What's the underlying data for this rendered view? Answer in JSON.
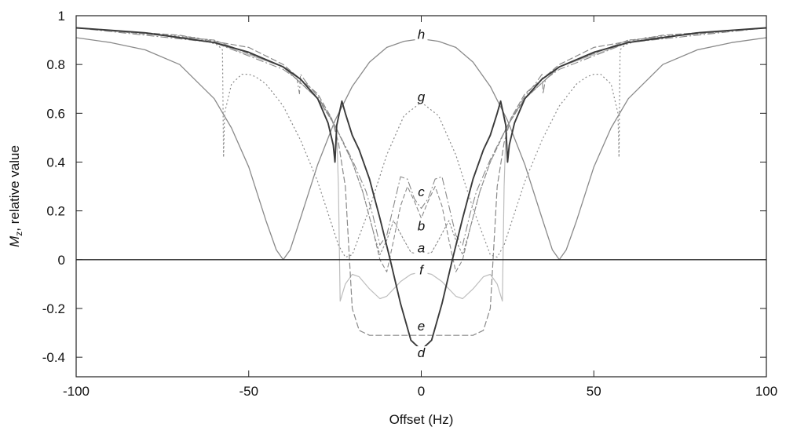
{
  "chart_data": {
    "type": "line",
    "title": "",
    "xlabel": "Offset (Hz)",
    "ylabel": "Mz, relative value",
    "ylabel_parts": {
      "main": "M",
      "sub": "z",
      "rest": ", relative value"
    },
    "xlim": [
      -100,
      100
    ],
    "ylim": [
      -0.48,
      1.0
    ],
    "xticks": [
      -100,
      -50,
      0,
      50,
      100
    ],
    "yticks": [
      -0.4,
      -0.2,
      0,
      0.2,
      0.4,
      0.6,
      0.8,
      1
    ],
    "xtick_labels": [
      "-100",
      "-50",
      "0",
      "50",
      "100"
    ],
    "ytick_labels": [
      "-0.4",
      "-0.2",
      "0",
      "0.2",
      "0.4",
      "0.6",
      "0.8",
      "1"
    ],
    "grid": false,
    "legend": "none",
    "reference_line": {
      "y": 0
    },
    "series": [
      {
        "name": "h",
        "style": {
          "color": "#8a8a8a",
          "width": 1.3,
          "dash": ""
        },
        "label_at": [
          0,
          0.905
        ],
        "x": [
          -100,
          -90,
          -80,
          -70,
          -60,
          -55,
          -50,
          -45,
          -42,
          -40,
          -38,
          -35,
          -30,
          -25,
          -20,
          -15,
          -10,
          -5,
          0,
          5,
          10,
          15,
          20,
          25,
          30,
          35,
          38,
          40,
          42,
          45,
          50,
          55,
          60,
          70,
          80,
          90,
          100
        ],
        "y": [
          0.91,
          0.89,
          0.86,
          0.8,
          0.66,
          0.54,
          0.38,
          0.16,
          0.04,
          0.0,
          0.04,
          0.17,
          0.39,
          0.57,
          0.71,
          0.81,
          0.87,
          0.895,
          0.905,
          0.895,
          0.87,
          0.81,
          0.71,
          0.57,
          0.39,
          0.17,
          0.04,
          0.0,
          0.04,
          0.16,
          0.38,
          0.54,
          0.66,
          0.8,
          0.86,
          0.89,
          0.91
        ]
      },
      {
        "name": "g",
        "style": {
          "color": "#8a8a8a",
          "width": 1.2,
          "dash": "2,3"
        },
        "label_at": [
          0,
          0.65
        ],
        "x": [
          -100,
          -80,
          -65,
          -59,
          -57.6,
          -57.3,
          -57,
          -55,
          -52,
          -50,
          -48,
          -45,
          -40,
          -35,
          -30,
          -27,
          -24,
          -22,
          -20,
          -15,
          -10,
          -5,
          0,
          5,
          10,
          15,
          20,
          22,
          24,
          27,
          30,
          35,
          40,
          45,
          48,
          50,
          52,
          55,
          57,
          57.3,
          57.6,
          59,
          65,
          80,
          100
        ],
        "y": [
          0.95,
          0.93,
          0.91,
          0.88,
          0.86,
          0.42,
          0.6,
          0.72,
          0.76,
          0.76,
          0.75,
          0.72,
          0.63,
          0.49,
          0.32,
          0.19,
          0.06,
          0.01,
          0.02,
          0.21,
          0.43,
          0.59,
          0.645,
          0.59,
          0.43,
          0.21,
          0.02,
          0.01,
          0.06,
          0.19,
          0.32,
          0.49,
          0.63,
          0.72,
          0.75,
          0.76,
          0.76,
          0.72,
          0.6,
          0.42,
          0.86,
          0.88,
          0.91,
          0.93,
          0.95
        ]
      },
      {
        "name": "f",
        "style": {
          "color": "#bdbdbd",
          "width": 1.2,
          "dash": ""
        },
        "label_at": [
          0,
          -0.06
        ],
        "x": [
          -100,
          -80,
          -60,
          -40,
          -30,
          -26,
          -24.5,
          -24,
          -23.5,
          -22,
          -20,
          -18,
          -15,
          -12,
          -10,
          -6,
          -3,
          0,
          3,
          6,
          10,
          12,
          15,
          18,
          20,
          22,
          23.5,
          24,
          24.5,
          26,
          30,
          40,
          60,
          80,
          100
        ],
        "y": [
          0.95,
          0.93,
          0.89,
          0.79,
          0.66,
          0.58,
          0.52,
          0.3,
          -0.17,
          -0.1,
          -0.06,
          -0.07,
          -0.12,
          -0.16,
          -0.15,
          -0.09,
          -0.06,
          -0.05,
          -0.06,
          -0.09,
          -0.15,
          -0.16,
          -0.12,
          -0.07,
          -0.06,
          -0.1,
          -0.17,
          0.3,
          0.52,
          0.58,
          0.66,
          0.79,
          0.89,
          0.93,
          0.95
        ]
      },
      {
        "name": "e",
        "style": {
          "color": "#8a8a8a",
          "width": 1.2,
          "dash": "8,3"
        },
        "label_at": [
          0,
          -0.29
        ],
        "x": [
          -100,
          -70,
          -50,
          -40,
          -30,
          -26,
          -24,
          -22,
          -21,
          -20,
          -18,
          -15,
          -10,
          -5,
          0,
          5,
          10,
          15,
          18,
          20,
          21,
          22,
          24,
          26,
          30,
          40,
          50,
          70,
          100
        ],
        "y": [
          0.95,
          0.92,
          0.87,
          0.8,
          0.68,
          0.58,
          0.48,
          0.3,
          0.05,
          -0.2,
          -0.29,
          -0.31,
          -0.31,
          -0.31,
          -0.31,
          -0.31,
          -0.31,
          -0.31,
          -0.29,
          -0.2,
          0.05,
          0.3,
          0.48,
          0.58,
          0.68,
          0.8,
          0.87,
          0.92,
          0.95
        ]
      },
      {
        "name": "a",
        "style": {
          "color": "#8a8a8a",
          "width": 1.1,
          "dash": "3,2"
        },
        "label_at": [
          0,
          0.03
        ],
        "x": [
          -100,
          -60,
          -40,
          -30,
          -25,
          -20,
          -17,
          -14,
          -12,
          -10,
          -8,
          -5,
          -3,
          0,
          3,
          5,
          8,
          10,
          12,
          14,
          17,
          20,
          25,
          30,
          40,
          60,
          100
        ],
        "y": [
          0.95,
          0.9,
          0.79,
          0.66,
          0.55,
          0.4,
          0.28,
          0.12,
          0.02,
          0.08,
          0.16,
          0.08,
          0.03,
          0.02,
          0.03,
          0.08,
          0.16,
          0.08,
          0.02,
          0.12,
          0.28,
          0.4,
          0.55,
          0.66,
          0.79,
          0.9,
          0.95
        ]
      },
      {
        "name": "b",
        "style": {
          "color": "#8a8a8a",
          "width": 1.1,
          "dash": "6,3"
        },
        "label_at": [
          0,
          0.12
        ],
        "x": [
          -100,
          -60,
          -40,
          -30,
          -25,
          -20,
          -17,
          -14,
          -12,
          -10,
          -8,
          -6,
          -4,
          -2,
          0,
          2,
          4,
          6,
          8,
          10,
          12,
          14,
          17,
          20,
          25,
          30,
          40,
          60,
          100
        ],
        "y": [
          0.95,
          0.9,
          0.79,
          0.66,
          0.55,
          0.4,
          0.28,
          0.12,
          0.0,
          -0.05,
          0.08,
          0.22,
          0.3,
          0.24,
          0.17,
          0.24,
          0.3,
          0.22,
          0.08,
          -0.05,
          0.0,
          0.12,
          0.28,
          0.4,
          0.55,
          0.66,
          0.79,
          0.9,
          0.95
        ]
      },
      {
        "name": "c",
        "style": {
          "color": "#8a8a8a",
          "width": 1.1,
          "dash": "10,3,2,3"
        },
        "label_at": [
          0,
          0.26
        ],
        "x": [
          -100,
          -60,
          -40,
          -36,
          -35.3,
          -35,
          -33,
          -30,
          -25,
          -20,
          -16,
          -14,
          -12,
          -10,
          -8,
          -6,
          -4,
          -2,
          0,
          2,
          4,
          6,
          8,
          10,
          12,
          14,
          16,
          20,
          25,
          30,
          33,
          35,
          35.3,
          36,
          40,
          60,
          100
        ],
        "y": [
          0.95,
          0.89,
          0.78,
          0.74,
          0.68,
          0.76,
          0.72,
          0.67,
          0.55,
          0.41,
          0.28,
          0.18,
          0.06,
          0.1,
          0.22,
          0.34,
          0.33,
          0.25,
          0.21,
          0.25,
          0.33,
          0.34,
          0.22,
          0.1,
          0.06,
          0.18,
          0.28,
          0.41,
          0.55,
          0.67,
          0.72,
          0.76,
          0.68,
          0.74,
          0.78,
          0.89,
          0.95
        ]
      },
      {
        "name": "d",
        "style": {
          "color": "#3a3a3a",
          "width": 1.9,
          "dash": ""
        },
        "label_at": [
          0,
          -0.4
        ],
        "x": [
          -100,
          -90,
          -80,
          -70,
          -60,
          -50,
          -40,
          -35,
          -30,
          -27,
          -25.5,
          -25,
          -24.5,
          -23,
          -22,
          -20,
          -18,
          -15,
          -12,
          -9,
          -6,
          -3,
          0,
          3,
          6,
          9,
          12,
          15,
          18,
          20,
          22,
          23,
          24.5,
          25,
          25.5,
          27,
          30,
          35,
          40,
          50,
          60,
          70,
          80,
          90,
          100
        ],
        "y": [
          0.95,
          0.94,
          0.93,
          0.91,
          0.89,
          0.85,
          0.79,
          0.74,
          0.66,
          0.56,
          0.47,
          0.4,
          0.55,
          0.65,
          0.6,
          0.51,
          0.45,
          0.33,
          0.17,
          0.0,
          -0.18,
          -0.33,
          -0.37,
          -0.33,
          -0.18,
          0.0,
          0.17,
          0.33,
          0.45,
          0.51,
          0.6,
          0.65,
          0.55,
          0.4,
          0.47,
          0.56,
          0.66,
          0.74,
          0.79,
          0.85,
          0.89,
          0.91,
          0.93,
          0.94,
          0.95
        ]
      }
    ]
  }
}
